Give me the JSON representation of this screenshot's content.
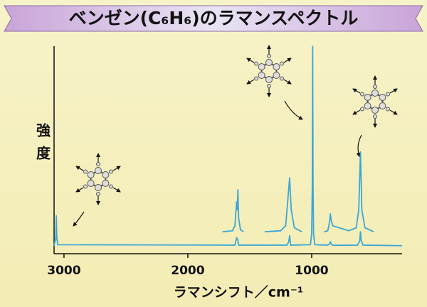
{
  "chart_data": {
    "type": "line",
    "title": "ベンゼン(C₆H₆)のラマンスペクトル",
    "x_label": "ラマンシフト／cm⁻¹",
    "y_label": "強度",
    "xlim": [
      3080,
      270
    ],
    "ylim": [
      -4,
      100
    ],
    "xticks": [
      3000,
      2000,
      1000
    ],
    "series": [
      {
        "color": "#3aa6d8",
        "x": [
          3080,
          3066,
          3062,
          3058,
          3050,
          1620,
          1606,
          1596,
          1590,
          1200,
          1185,
          1178,
          1170,
          1010,
          1000,
          995,
          992,
          989,
          985,
          975,
          870,
          855,
          849,
          843,
          830,
          630,
          612,
          606,
          600,
          585,
          270
        ],
        "values": [
          0,
          4,
          15,
          4,
          0.5,
          0.3,
          4,
          3,
          0.3,
          0.3,
          2,
          5,
          0.3,
          0.5,
          6,
          30,
          100,
          30,
          6,
          0.5,
          0.3,
          1,
          2,
          0.8,
          0.2,
          0.3,
          2.5,
          7,
          2.5,
          0.3,
          0
        ]
      },
      {
        "color": "#3aa6d8",
        "x": [
          1720,
          1640,
          1620,
          1606,
          1600,
          1596,
          1590,
          1575,
          1550,
          null,
          1380,
          1250,
          1210,
          1190,
          1178,
          1165,
          1140,
          1080,
          null,
          900,
          870,
          855,
          849,
          843,
          830,
          700,
          640,
          620,
          606,
          595,
          570,
          500
        ],
        "values": [
          7,
          7.5,
          10,
          22,
          18,
          28,
          14,
          8,
          7,
          null,
          7,
          7.5,
          10,
          25,
          34,
          18,
          9,
          7,
          null,
          7,
          7.5,
          12,
          16,
          13,
          10,
          7.5,
          9,
          18,
          47,
          18,
          9,
          7
        ]
      }
    ]
  }
}
